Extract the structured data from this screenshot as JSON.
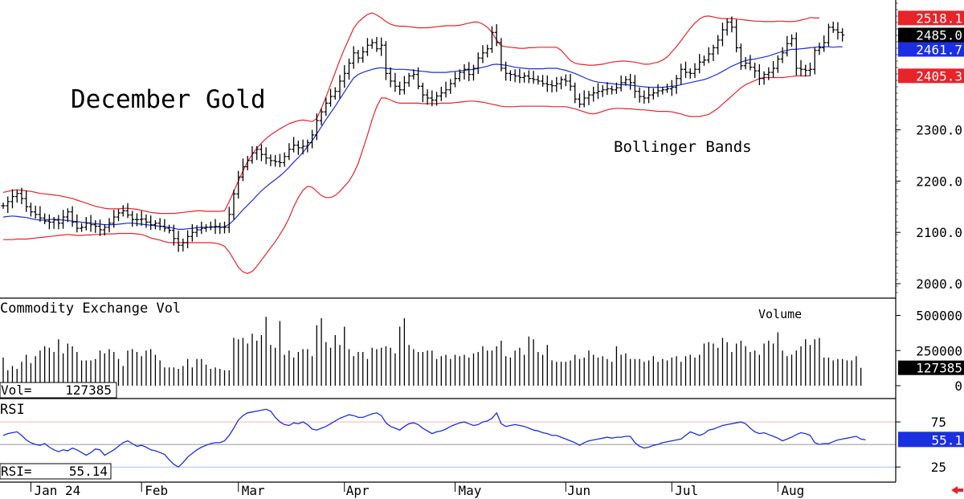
{
  "chart_data": [
    {
      "type": "ohlc",
      "title": "December Gold",
      "annotation": "Bollinger Bands",
      "ylim": [
        1975,
        2550
      ],
      "y_ticks": [
        "2000.0",
        "2100.0",
        "2200.0",
        "2300.0"
      ],
      "markers": {
        "upper_band": {
          "value": 2518.1,
          "label": "2518.1",
          "color": "#e8232a"
        },
        "last_price": {
          "value": 2485.0,
          "label": "2485.0",
          "color": "#000000"
        },
        "middle_band": {
          "value": 2461.7,
          "label": "2461.7",
          "color": "#1a2fe0"
        },
        "lower_band": {
          "value": 2405.3,
          "label": "2405.3",
          "color": "#e8232a"
        }
      },
      "x_labels": [
        "Jan 24",
        "Feb",
        "Mar",
        "Apr",
        "May",
        "Jun",
        "Jul",
        "Aug"
      ],
      "closes": [
        2152,
        2160,
        2170,
        2176,
        2166,
        2150,
        2140,
        2135,
        2128,
        2122,
        2120,
        2124,
        2118,
        2130,
        2140,
        2120,
        2108,
        2110,
        2118,
        2115,
        2112,
        2105,
        2110,
        2118,
        2130,
        2138,
        2142,
        2134,
        2125,
        2125,
        2126,
        2120,
        2115,
        2118,
        2112,
        2108,
        2104,
        2088,
        2075,
        2080,
        2092,
        2100,
        2105,
        2108,
        2110,
        2111,
        2112,
        2110,
        2110,
        2135,
        2175,
        2208,
        2228,
        2240,
        2255,
        2262,
        2252,
        2245,
        2240,
        2238,
        2236,
        2248,
        2262,
        2270,
        2265,
        2268,
        2275,
        2290,
        2318,
        2335,
        2352,
        2365,
        2375,
        2395,
        2410,
        2430,
        2450,
        2440,
        2452,
        2465,
        2470,
        2458,
        2465,
        2410,
        2395,
        2385,
        2378,
        2392,
        2405,
        2408,
        2385,
        2368,
        2362,
        2358,
        2366,
        2372,
        2378,
        2390,
        2400,
        2412,
        2418,
        2408,
        2420,
        2440,
        2450,
        2458,
        2490,
        2470,
        2420,
        2410,
        2408,
        2405,
        2402,
        2405,
        2400,
        2398,
        2395,
        2390,
        2388,
        2386,
        2390,
        2398,
        2395,
        2385,
        2360,
        2350,
        2362,
        2368,
        2372,
        2375,
        2378,
        2380,
        2378,
        2382,
        2392,
        2398,
        2392,
        2375,
        2365,
        2362,
        2368,
        2372,
        2376,
        2378,
        2380,
        2383,
        2400,
        2418,
        2412,
        2410,
        2418,
        2432,
        2436,
        2448,
        2460,
        2475,
        2495,
        2510,
        2500,
        2460,
        2425,
        2430,
        2422,
        2415,
        2400,
        2408,
        2412,
        2420,
        2438,
        2450,
        2468,
        2478,
        2420,
        2418,
        2416,
        2418,
        2455,
        2460,
        2470,
        2500,
        2495,
        2490,
        2485
      ],
      "middle_band": [
        2130,
        2131,
        2132,
        2131,
        2130,
        2129,
        2127,
        2125,
        2124,
        2124,
        2125,
        2126,
        2125,
        2124,
        2123,
        2122,
        2121,
        2120,
        2119,
        2118,
        2117,
        2116,
        2115,
        2115,
        2115,
        2116,
        2117,
        2118,
        2118,
        2117,
        2116,
        2115,
        2114,
        2113,
        2112,
        2111,
        2110,
        2108,
        2106,
        2106,
        2107,
        2108,
        2109,
        2110,
        2110,
        2110,
        2110,
        2110,
        2111,
        2116,
        2124,
        2134,
        2144,
        2153,
        2162,
        2172,
        2181,
        2189,
        2196,
        2203,
        2210,
        2218,
        2227,
        2237,
        2246,
        2256,
        2267,
        2279,
        2292,
        2306,
        2320,
        2333,
        2346,
        2360,
        2374,
        2388,
        2401,
        2408,
        2412,
        2415,
        2418,
        2420,
        2421,
        2420,
        2419,
        2418,
        2418,
        2418,
        2417,
        2416,
        2415,
        2414,
        2413,
        2412,
        2412,
        2412,
        2412,
        2413,
        2414,
        2415,
        2416,
        2417,
        2418,
        2420,
        2422,
        2424,
        2427,
        2428,
        2427,
        2426,
        2424,
        2422,
        2421,
        2420,
        2419,
        2419,
        2419,
        2419,
        2420,
        2420,
        2420,
        2418,
        2416,
        2413,
        2410,
        2406,
        2402,
        2398,
        2395,
        2393,
        2392,
        2391,
        2390,
        2389,
        2388,
        2388,
        2387,
        2386,
        2385,
        2384,
        2383,
        2383,
        2383,
        2383,
        2384,
        2385,
        2386,
        2388,
        2390,
        2392,
        2394,
        2396,
        2398,
        2401,
        2405,
        2409,
        2414,
        2419,
        2424,
        2428,
        2432,
        2435,
        2437,
        2438,
        2440,
        2442,
        2444,
        2447,
        2450,
        2453,
        2455,
        2457,
        2457,
        2458,
        2459,
        2460,
        2461,
        2462,
        2462,
        2462,
        2461,
        2462,
        2461.7
      ],
      "upper_band": [
        2178,
        2180,
        2182,
        2183,
        2182,
        2181,
        2180,
        2178,
        2176,
        2175,
        2174,
        2173,
        2172,
        2170,
        2168,
        2166,
        2163,
        2160,
        2157,
        2154,
        2151,
        2149,
        2147,
        2146,
        2146,
        2146,
        2147,
        2147,
        2146,
        2145,
        2143,
        2141,
        2139,
        2138,
        2137,
        2137,
        2137,
        2137,
        2138,
        2139,
        2140,
        2141,
        2142,
        2142,
        2141,
        2141,
        2141,
        2141,
        2142,
        2160,
        2180,
        2200,
        2220,
        2238,
        2252,
        2264,
        2274,
        2283,
        2290,
        2296,
        2302,
        2307,
        2312,
        2315,
        2318,
        2319,
        2318,
        2316,
        2322,
        2342,
        2364,
        2388,
        2412,
        2436,
        2458,
        2478,
        2498,
        2510,
        2518,
        2525,
        2528,
        2524,
        2518,
        2511,
        2506,
        2503,
        2502,
        2502,
        2501,
        2500,
        2499,
        2499,
        2499,
        2500,
        2501,
        2502,
        2503,
        2503,
        2503,
        2504,
        2506,
        2508,
        2510,
        2510,
        2506,
        2500,
        2490,
        2475,
        2464,
        2462,
        2461,
        2460,
        2459,
        2459,
        2460,
        2460,
        2461,
        2461,
        2461,
        2461,
        2461,
        2455,
        2445,
        2435,
        2430,
        2428,
        2427,
        2426,
        2426,
        2427,
        2428,
        2430,
        2432,
        2433,
        2434,
        2434,
        2433,
        2432,
        2430,
        2428,
        2428,
        2430,
        2432,
        2436,
        2442,
        2452,
        2462,
        2474,
        2486,
        2498,
        2508,
        2516,
        2521,
        2522,
        2520,
        2518,
        2517,
        2517,
        2517,
        2516,
        2515,
        2514,
        2513,
        2512,
        2512,
        2511,
        2511,
        2511,
        2512,
        2512,
        2511,
        2511,
        2512,
        2514,
        2516,
        2519,
        2518,
        2518.1
      ],
      "lower_band": [
        2086,
        2086,
        2086,
        2087,
        2087,
        2087,
        2088,
        2089,
        2090,
        2091,
        2092,
        2093,
        2094,
        2095,
        2096,
        2095,
        2094,
        2094,
        2095,
        2095,
        2096,
        2096,
        2097,
        2097,
        2097,
        2098,
        2098,
        2098,
        2098,
        2097,
        2096,
        2093,
        2089,
        2087,
        2085,
        2082,
        2080,
        2080,
        2080,
        2080,
        2080,
        2080,
        2080,
        2080,
        2080,
        2080,
        2079,
        2077,
        2073,
        2062,
        2047,
        2032,
        2023,
        2020,
        2024,
        2034,
        2046,
        2058,
        2070,
        2082,
        2096,
        2110,
        2128,
        2150,
        2168,
        2182,
        2190,
        2188,
        2180,
        2172,
        2168,
        2168,
        2172,
        2180,
        2190,
        2200,
        2215,
        2235,
        2262,
        2290,
        2320,
        2345,
        2362,
        2362,
        2358,
        2354,
        2352,
        2352,
        2352,
        2352,
        2352,
        2351,
        2351,
        2351,
        2351,
        2352,
        2352,
        2352,
        2353,
        2354,
        2355,
        2356,
        2356,
        2355,
        2354,
        2352,
        2350,
        2348,
        2346,
        2345,
        2345,
        2345,
        2346,
        2346,
        2346,
        2346,
        2346,
        2346,
        2346,
        2345,
        2345,
        2345,
        2345,
        2343,
        2341,
        2338,
        2335,
        2332,
        2331,
        2333,
        2336,
        2339,
        2341,
        2342,
        2342,
        2341,
        2341,
        2340,
        2339,
        2339,
        2338,
        2337,
        2336,
        2336,
        2336,
        2335,
        2333,
        2331,
        2328,
        2326,
        2326,
        2326,
        2328,
        2330,
        2336,
        2342,
        2350,
        2358,
        2366,
        2374,
        2382,
        2388,
        2392,
        2396,
        2400,
        2402,
        2402,
        2402,
        2402,
        2402,
        2403,
        2404,
        2405,
        2405,
        2405,
        2405.3
      ]
    },
    {
      "type": "bar",
      "title": "Commodity Exchange Vol",
      "annotation": "Volume",
      "ylim": [
        0,
        600000
      ],
      "y_ticks": [
        "500000",
        "250000",
        "0"
      ],
      "readout_label": "Vol=",
      "readout_value": "127385",
      "marker_label": "127385",
      "values": [
        200000,
        110000,
        140000,
        120000,
        170000,
        220000,
        160000,
        210000,
        250000,
        280000,
        270000,
        240000,
        330000,
        230000,
        300000,
        280000,
        240000,
        180000,
        180000,
        180000,
        190000,
        250000,
        230000,
        260000,
        240000,
        190000,
        140000,
        250000,
        260000,
        240000,
        210000,
        250000,
        260000,
        220000,
        180000,
        130000,
        130000,
        130000,
        120000,
        140000,
        190000,
        130000,
        190000,
        190000,
        150000,
        120000,
        130000,
        120000,
        110000,
        110000,
        340000,
        330000,
        340000,
        300000,
        370000,
        320000,
        360000,
        490000,
        290000,
        270000,
        460000,
        220000,
        250000,
        200000,
        240000,
        260000,
        260000,
        210000,
        430000,
        480000,
        310000,
        270000,
        360000,
        290000,
        420000,
        260000,
        210000,
        240000,
        240000,
        190000,
        270000,
        260000,
        270000,
        280000,
        270000,
        230000,
        420000,
        480000,
        290000,
        260000,
        240000,
        240000,
        250000,
        250000,
        190000,
        210000,
        220000,
        190000,
        220000,
        210000,
        220000,
        200000,
        230000,
        240000,
        280000,
        250000,
        250000,
        280000,
        320000,
        210000,
        200000,
        250000,
        270000,
        220000,
        350000,
        330000,
        240000,
        220000,
        290000,
        180000,
        170000,
        170000,
        170000,
        180000,
        220000,
        190000,
        200000,
        250000,
        220000,
        200000,
        210000,
        190000,
        170000,
        280000,
        220000,
        230000,
        190000,
        190000,
        190000,
        170000,
        180000,
        210000,
        170000,
        190000,
        180000,
        200000,
        210000,
        170000,
        210000,
        220000,
        200000,
        220000,
        300000,
        310000,
        300000,
        270000,
        340000,
        310000,
        240000,
        300000,
        320000,
        280000,
        240000,
        250000,
        220000,
        300000,
        320000,
        300000,
        380000,
        250000,
        210000,
        220000,
        250000,
        280000,
        330000,
        290000,
        330000,
        340000,
        200000,
        200000,
        180000,
        190000,
        190000,
        180000,
        180000,
        210000,
        127385
      ]
    },
    {
      "type": "line",
      "title": "RSI",
      "ylim": [
        10,
        100
      ],
      "y_ticks": [
        "75",
        "25"
      ],
      "readout_label": "RSI=",
      "readout_value": "55.14",
      "marker_label": "55.1",
      "values": [
        60,
        62,
        63,
        64,
        60,
        55,
        52,
        50,
        49,
        51,
        47,
        44,
        42,
        44,
        43,
        46,
        44,
        41,
        38,
        41,
        45,
        44,
        38,
        41,
        44,
        48,
        52,
        54,
        51,
        48,
        49,
        47,
        44,
        43,
        41,
        39,
        33,
        28,
        25,
        30,
        36,
        40,
        44,
        47,
        49,
        51,
        52,
        52,
        54,
        60,
        68,
        77,
        82,
        85,
        86,
        87,
        88,
        89,
        87,
        80,
        75,
        72,
        71,
        74,
        73,
        75,
        72,
        67,
        66,
        68,
        70,
        73,
        76,
        79,
        81,
        83,
        82,
        80,
        80,
        82,
        84,
        85,
        82,
        74,
        70,
        68,
        66,
        70,
        73,
        74,
        72,
        68,
        65,
        62,
        64,
        65,
        67,
        70,
        72,
        74,
        75,
        73,
        71,
        72,
        75,
        76,
        79,
        85,
        73,
        70,
        71,
        72,
        71,
        70,
        68,
        66,
        65,
        63,
        62,
        60,
        60,
        58,
        56,
        54,
        52,
        49,
        52,
        54,
        55,
        56,
        57,
        58,
        57,
        58,
        58,
        59,
        59,
        52,
        48,
        46,
        47,
        49,
        50,
        52,
        53,
        54,
        55,
        56,
        60,
        64,
        62,
        60,
        62,
        66,
        67,
        69,
        71,
        72,
        73,
        74,
        75,
        73,
        68,
        64,
        62,
        63,
        61,
        59,
        57,
        54,
        56,
        58,
        61,
        63,
        62,
        60,
        52,
        50,
        51,
        51,
        53,
        55,
        56,
        57,
        58,
        59,
        56,
        55.14
      ]
    }
  ]
}
